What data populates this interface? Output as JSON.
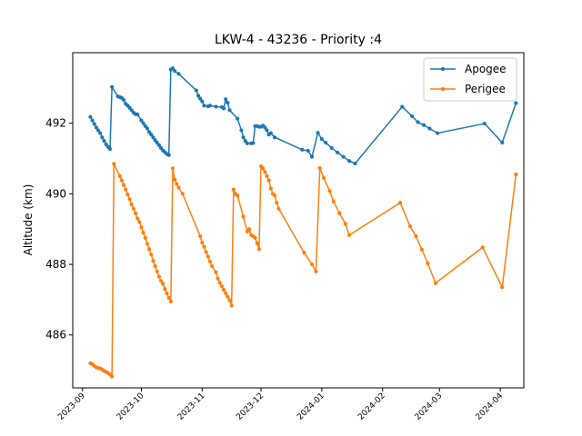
{
  "chart_data": {
    "type": "line",
    "title": "LKW-4 - 43236 - Priority :4",
    "xlabel": "",
    "ylabel": "Altitude (km)",
    "xlim": [
      "2023-08-27",
      "2024-04-13"
    ],
    "ylim": [
      484.5,
      494.0
    ],
    "yticks": [
      486,
      488,
      490,
      492
    ],
    "xticks": [
      {
        "date": "2023-09-01",
        "label": "2023-09"
      },
      {
        "date": "2023-10-01",
        "label": "2023-10"
      },
      {
        "date": "2023-11-01",
        "label": "2023-11"
      },
      {
        "date": "2023-12-01",
        "label": "2023-12"
      },
      {
        "date": "2024-01-01",
        "label": "2024-01"
      },
      {
        "date": "2024-02-01",
        "label": "2024-02"
      },
      {
        "date": "2024-03-01",
        "label": "2024-03"
      },
      {
        "date": "2024-04-01",
        "label": "2024-04"
      }
    ],
    "grid": false,
    "legend_position": "top-right",
    "series": [
      {
        "name": "Apogee",
        "color": "#1f77b4",
        "marker": "circle",
        "points": [
          [
            "2023-09-05",
            492.18
          ],
          [
            "2023-09-06",
            492.08
          ],
          [
            "2023-09-07",
            491.98
          ],
          [
            "2023-09-08",
            491.88
          ],
          [
            "2023-09-09",
            491.8
          ],
          [
            "2023-09-10",
            491.72
          ],
          [
            "2023-09-11",
            491.6
          ],
          [
            "2023-09-12",
            491.5
          ],
          [
            "2023-09-13",
            491.4
          ],
          [
            "2023-09-14",
            491.33
          ],
          [
            "2023-09-15",
            491.27
          ],
          [
            "2023-09-16",
            493.03
          ],
          [
            "2023-09-19",
            492.76
          ],
          [
            "2023-09-20",
            492.74
          ],
          [
            "2023-09-21",
            492.72
          ],
          [
            "2023-09-22",
            492.66
          ],
          [
            "2023-09-23",
            492.55
          ],
          [
            "2023-09-24",
            492.5
          ],
          [
            "2023-09-25",
            492.44
          ],
          [
            "2023-09-26",
            492.37
          ],
          [
            "2023-09-27",
            492.3
          ],
          [
            "2023-09-28",
            492.26
          ],
          [
            "2023-09-29",
            492.25
          ],
          [
            "2023-10-01",
            492.08
          ],
          [
            "2023-10-02",
            492.0
          ],
          [
            "2023-10-03",
            491.92
          ],
          [
            "2023-10-04",
            491.85
          ],
          [
            "2023-10-05",
            491.75
          ],
          [
            "2023-10-06",
            491.68
          ],
          [
            "2023-10-07",
            491.6
          ],
          [
            "2023-10-08",
            491.52
          ],
          [
            "2023-10-09",
            491.45
          ],
          [
            "2023-10-10",
            491.38
          ],
          [
            "2023-10-11",
            491.3
          ],
          [
            "2023-10-12",
            491.23
          ],
          [
            "2023-10-13",
            491.18
          ],
          [
            "2023-10-14",
            491.13
          ],
          [
            "2023-10-15",
            491.1
          ],
          [
            "2023-10-16",
            493.52
          ],
          [
            "2023-10-17",
            493.56
          ],
          [
            "2023-10-18",
            493.48
          ],
          [
            "2023-10-20",
            493.4
          ],
          [
            "2023-10-29",
            492.93
          ],
          [
            "2023-10-30",
            492.78
          ],
          [
            "2023-10-31",
            492.7
          ],
          [
            "2023-11-01",
            492.62
          ],
          [
            "2023-11-02",
            492.5
          ],
          [
            "2023-11-04",
            492.48
          ],
          [
            "2023-11-05",
            492.5
          ],
          [
            "2023-11-08",
            492.47
          ],
          [
            "2023-11-11",
            492.46
          ],
          [
            "2023-11-12",
            492.42
          ],
          [
            "2023-11-13",
            492.68
          ],
          [
            "2023-11-14",
            492.58
          ],
          [
            "2023-11-15",
            492.37
          ],
          [
            "2023-11-19",
            492.13
          ],
          [
            "2023-11-21",
            491.8
          ],
          [
            "2023-11-22",
            491.6
          ],
          [
            "2023-11-23",
            491.5
          ],
          [
            "2023-11-24",
            491.43
          ],
          [
            "2023-11-26",
            491.43
          ],
          [
            "2023-11-27",
            491.44
          ],
          [
            "2023-11-28",
            491.92
          ],
          [
            "2023-11-29",
            491.92
          ],
          [
            "2023-11-30",
            491.9
          ],
          [
            "2023-12-01",
            491.9
          ],
          [
            "2023-12-02",
            491.93
          ],
          [
            "2023-12-03",
            491.88
          ],
          [
            "2023-12-04",
            491.8
          ],
          [
            "2023-12-05",
            491.68
          ],
          [
            "2023-12-06",
            491.72
          ],
          [
            "2023-12-08",
            491.6
          ],
          [
            "2023-12-22",
            491.25
          ],
          [
            "2023-12-25",
            491.22
          ],
          [
            "2023-12-27",
            491.05
          ],
          [
            "2023-12-30",
            491.73
          ],
          [
            "2024-01-01",
            491.55
          ],
          [
            "2024-01-03",
            491.45
          ],
          [
            "2024-01-06",
            491.3
          ],
          [
            "2024-01-09",
            491.17
          ],
          [
            "2024-01-12",
            491.05
          ],
          [
            "2024-01-15",
            490.93
          ],
          [
            "2024-01-18",
            490.86
          ],
          [
            "2024-02-11",
            492.47
          ],
          [
            "2024-02-16",
            492.2
          ],
          [
            "2024-02-19",
            492.03
          ],
          [
            "2024-02-22",
            491.95
          ],
          [
            "2024-02-25",
            491.85
          ],
          [
            "2024-02-29",
            491.72
          ],
          [
            "2024-03-24",
            491.99
          ],
          [
            "2024-04-02",
            491.45
          ],
          [
            "2024-04-09",
            492.57
          ]
        ]
      },
      {
        "name": "Perigee",
        "color": "#ff7f0e",
        "marker": "circle",
        "points": [
          [
            "2023-09-05",
            485.2
          ],
          [
            "2023-09-06",
            485.17
          ],
          [
            "2023-09-07",
            485.12
          ],
          [
            "2023-09-08",
            485.08
          ],
          [
            "2023-09-09",
            485.06
          ],
          [
            "2023-09-10",
            485.05
          ],
          [
            "2023-09-11",
            485.02
          ],
          [
            "2023-09-12",
            484.98
          ],
          [
            "2023-09-13",
            484.95
          ],
          [
            "2023-09-14",
            484.92
          ],
          [
            "2023-09-15",
            484.88
          ],
          [
            "2023-09-16",
            484.82
          ],
          [
            "2023-09-17",
            490.85
          ],
          [
            "2023-09-20",
            490.5
          ],
          [
            "2023-09-21",
            490.38
          ],
          [
            "2023-09-22",
            490.25
          ],
          [
            "2023-09-23",
            490.12
          ],
          [
            "2023-09-24",
            489.98
          ],
          [
            "2023-09-25",
            489.85
          ],
          [
            "2023-09-26",
            489.7
          ],
          [
            "2023-09-27",
            489.58
          ],
          [
            "2023-09-28",
            489.45
          ],
          [
            "2023-09-29",
            489.3
          ],
          [
            "2023-09-30",
            489.2
          ],
          [
            "2023-10-01",
            489.05
          ],
          [
            "2023-10-02",
            488.9
          ],
          [
            "2023-10-03",
            488.75
          ],
          [
            "2023-10-04",
            488.58
          ],
          [
            "2023-10-05",
            488.43
          ],
          [
            "2023-10-06",
            488.28
          ],
          [
            "2023-10-07",
            488.1
          ],
          [
            "2023-10-08",
            487.95
          ],
          [
            "2023-10-09",
            487.8
          ],
          [
            "2023-10-10",
            487.65
          ],
          [
            "2023-10-11",
            487.53
          ],
          [
            "2023-10-12",
            487.45
          ],
          [
            "2023-10-13",
            487.3
          ],
          [
            "2023-10-14",
            487.18
          ],
          [
            "2023-10-15",
            487.05
          ],
          [
            "2023-10-16",
            486.95
          ],
          [
            "2023-10-17",
            490.72
          ],
          [
            "2023-10-18",
            490.4
          ],
          [
            "2023-10-19",
            490.28
          ],
          [
            "2023-10-20",
            490.18
          ],
          [
            "2023-10-22",
            490.0
          ],
          [
            "2023-10-31",
            488.8
          ],
          [
            "2023-11-01",
            488.62
          ],
          [
            "2023-11-02",
            488.5
          ],
          [
            "2023-11-03",
            488.35
          ],
          [
            "2023-11-04",
            488.22
          ],
          [
            "2023-11-05",
            488.08
          ],
          [
            "2023-11-06",
            487.95
          ],
          [
            "2023-11-08",
            487.78
          ],
          [
            "2023-11-09",
            487.6
          ],
          [
            "2023-11-10",
            487.48
          ],
          [
            "2023-11-11",
            487.38
          ],
          [
            "2023-11-12",
            487.28
          ],
          [
            "2023-11-13",
            487.18
          ],
          [
            "2023-11-14",
            487.08
          ],
          [
            "2023-11-15",
            486.98
          ],
          [
            "2023-11-16",
            486.83
          ],
          [
            "2023-11-17",
            490.12
          ],
          [
            "2023-11-18",
            490.0
          ],
          [
            "2023-11-19",
            489.95
          ],
          [
            "2023-11-22",
            489.35
          ],
          [
            "2023-11-24",
            488.93
          ],
          [
            "2023-11-25",
            489.0
          ],
          [
            "2023-11-26",
            488.83
          ],
          [
            "2023-11-27",
            488.8
          ],
          [
            "2023-11-28",
            488.75
          ],
          [
            "2023-11-29",
            488.6
          ],
          [
            "2023-11-30",
            488.43
          ],
          [
            "2023-12-01",
            490.78
          ],
          [
            "2023-12-02",
            490.72
          ],
          [
            "2023-12-03",
            490.62
          ],
          [
            "2023-12-04",
            490.5
          ],
          [
            "2023-12-05",
            490.38
          ],
          [
            "2023-12-06",
            490.15
          ],
          [
            "2023-12-07",
            490.0
          ],
          [
            "2023-12-08",
            489.95
          ],
          [
            "2023-12-09",
            489.75
          ],
          [
            "2023-12-10",
            489.58
          ],
          [
            "2023-12-23",
            488.33
          ],
          [
            "2023-12-27",
            488.0
          ],
          [
            "2023-12-29",
            487.8
          ],
          [
            "2023-12-31",
            490.73
          ],
          [
            "2024-01-02",
            490.45
          ],
          [
            "2024-01-05",
            490.08
          ],
          [
            "2024-01-07",
            489.78
          ],
          [
            "2024-01-10",
            489.45
          ],
          [
            "2024-01-13",
            489.15
          ],
          [
            "2024-01-15",
            488.83
          ],
          [
            "2024-02-10",
            489.75
          ],
          [
            "2024-02-15",
            489.08
          ],
          [
            "2024-02-18",
            488.8
          ],
          [
            "2024-02-21",
            488.42
          ],
          [
            "2024-02-24",
            488.03
          ],
          [
            "2024-02-28",
            487.47
          ],
          [
            "2024-03-23",
            488.48
          ],
          [
            "2024-04-02",
            487.35
          ],
          [
            "2024-04-09",
            490.55
          ]
        ]
      }
    ]
  }
}
